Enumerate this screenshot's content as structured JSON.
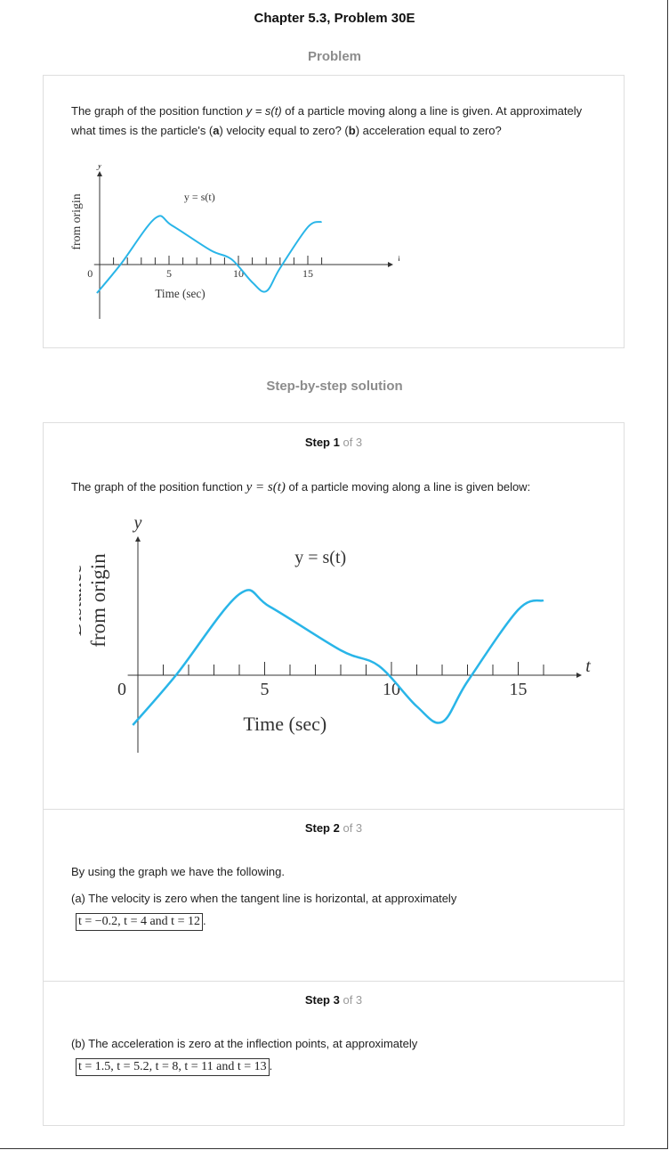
{
  "header": {
    "chapter_title": "Chapter 5.3, Problem 30E",
    "problem_label": "Problem",
    "solution_label": "Step-by-step solution"
  },
  "problem": {
    "text_before": "The graph of the position function ",
    "func": "y = s(t)",
    "text_mid1": " of a particle moving along a line is given. At approximately what times is the particle's (",
    "part_a": "a",
    "text_mid2": ") velocity equal to zero? (",
    "part_b": "b",
    "text_end": ") acceleration equal to zero?"
  },
  "graph_labels": {
    "y_axis": "y",
    "t_axis": "t",
    "curve": "y = s(t)",
    "ylabel_line1": "Distance",
    "ylabel_line2": "from origin",
    "xlabel": "Time (sec)",
    "tick_0": "0",
    "tick_5": "5",
    "tick_10": "10",
    "tick_15": "15"
  },
  "curve_color": "#29b5e8",
  "curve_points": [
    {
      "t": -0.2,
      "s": -1.6
    },
    {
      "t": 1.5,
      "s": 0.0
    },
    {
      "t": 4.0,
      "s": 2.6
    },
    {
      "t": 5.2,
      "s": 2.2
    },
    {
      "t": 8.0,
      "s": 0.8
    },
    {
      "t": 9.5,
      "s": 0.3
    },
    {
      "t": 11.0,
      "s": -1.0
    },
    {
      "t": 12.0,
      "s": -1.5
    },
    {
      "t": 13.0,
      "s": -0.2
    },
    {
      "t": 15.0,
      "s": 2.1
    },
    {
      "t": 16.0,
      "s": 2.4
    }
  ],
  "steps": [
    {
      "label": "Step 1",
      "of": "of 3",
      "text_before": "The graph of the position function ",
      "func": "y = s(t)",
      "text_after": " of a particle moving along a line is given below:"
    },
    {
      "label": "Step 2",
      "of": "of 3",
      "line1": "By using the graph we have the following.",
      "line2": "(a) The velocity is zero when the tangent line is horizontal, at approximately",
      "answer": "t = −0.2,  t = 4 and t = 12"
    },
    {
      "label": "Step 3",
      "of": "of 3",
      "line1": "(b) The acceleration is zero at the inflection points, at approximately",
      "answer": "t = 1.5,  t = 5.2,  t = 8,  t = 11 and  t = 13"
    }
  ]
}
